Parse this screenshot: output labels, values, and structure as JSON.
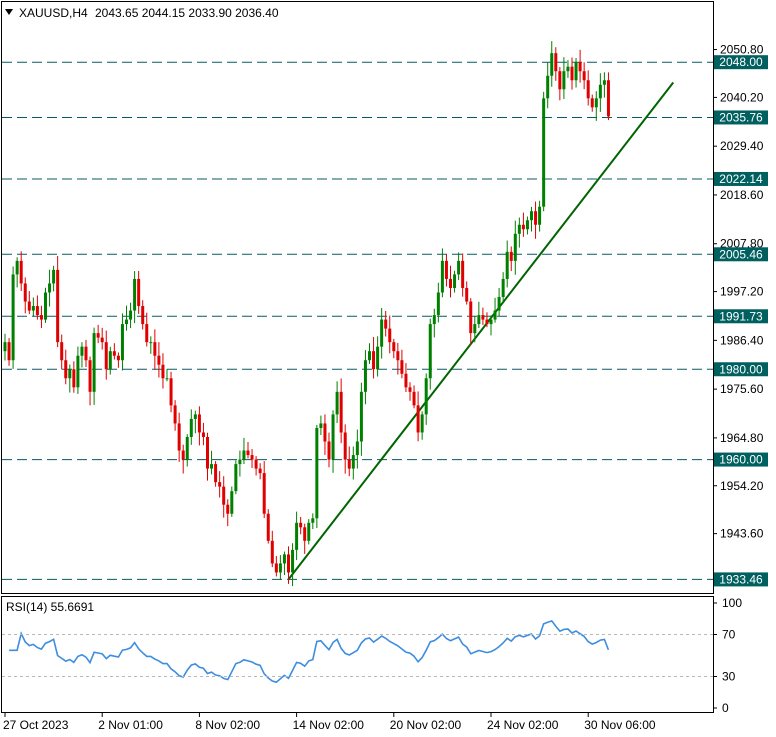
{
  "header": {
    "symbol": "XAUUSD,H4",
    "ohlc": "2043.65 2044.15 2033.90 2036.40"
  },
  "colors": {
    "bull": "#008000",
    "bear": "#e00000",
    "levels": "#0a5a66",
    "badge_bg": "#006060",
    "trendline": "#006400",
    "rsi_line": "#3d8de0",
    "grid_frame": "#000000"
  },
  "chart_data": [
    {
      "type": "candlestick",
      "y_tick_labels": [
        "2050.80",
        "2040.20",
        "2029.40",
        "2018.60",
        "2007.80",
        "1997.20",
        "1986.40",
        "1975.60",
        "1964.80",
        "1954.20",
        "1943.60"
      ],
      "y_ticks": [
        2050.8,
        2040.2,
        2029.4,
        2018.6,
        2007.8,
        1997.2,
        1986.4,
        1975.6,
        1964.8,
        1954.2,
        1943.6
      ],
      "ylim": [
        1932.0,
        2060.0
      ],
      "x_tick_labels": [
        "27 Oct 2023",
        "2 Nov 01:00",
        "8 Nov 02:00",
        "14 Nov 02:00",
        "20 Nov 02:00",
        "24 Nov 02:00",
        "30 Nov 06:00"
      ],
      "x_tick_index": [
        0,
        24,
        48,
        72,
        96,
        120,
        144
      ],
      "horizontal_levels": [
        {
          "value": 2048.0,
          "label": "2048.00"
        },
        {
          "value": 2035.76,
          "label": "2035.76"
        },
        {
          "value": 2022.14,
          "label": "2022.14"
        },
        {
          "value": 2005.46,
          "label": "2005.46"
        },
        {
          "value": 1991.73,
          "label": "1991.73"
        },
        {
          "value": 1980.0,
          "label": "1980.00"
        },
        {
          "value": 1960.0,
          "label": "1960.00"
        },
        {
          "value": 1933.46,
          "label": "1933.46"
        }
      ],
      "trendline": {
        "from": {
          "bar": 70,
          "price": 1933.46
        },
        "to": {
          "bar": 165,
          "price": 2043.5
        }
      },
      "close": [
        1986,
        1982,
        2001,
        2004,
        1999,
        1995,
        1993,
        1994,
        1992,
        1991,
        1997,
        1999,
        2002,
        1986,
        1982,
        1978,
        1980,
        1976,
        1983,
        1985,
        1982,
        1975,
        1988,
        1987,
        1986,
        1980,
        1984,
        1983,
        1982,
        1990,
        1991,
        1993,
        2000,
        1994,
        1990,
        1986,
        1986,
        1983,
        1981,
        1978,
        1978,
        1972,
        1968,
        1962,
        1960,
        1965,
        1969,
        1970,
        1966,
        1965,
        1958,
        1959,
        1955,
        1954,
        1950,
        1948,
        1953,
        1959,
        1960,
        1962,
        1961,
        1960,
        1958,
        1957,
        1948,
        1942,
        1937,
        1935,
        1937,
        1939,
        1935,
        1940,
        1946,
        1945,
        1942,
        1946,
        1947,
        1967,
        1968,
        1964,
        1960,
        1970,
        1975,
        1966,
        1960,
        1958,
        1961,
        1964,
        1975,
        1982,
        1984,
        1980,
        1985,
        1991,
        1989,
        1986,
        1984,
        1982,
        1979,
        1976,
        1975,
        1972,
        1966,
        1970,
        1978,
        1990,
        1992,
        1997,
        2004,
        2000,
        1998,
        2001,
        2004,
        1998,
        1995,
        1988,
        1990,
        1992,
        1991,
        1990,
        1991,
        1993,
        1996,
        2000,
        2006,
        2004,
        2010,
        2012,
        2011,
        2013,
        2015,
        2012,
        2016,
        2040,
        2045,
        2050,
        2046,
        2042,
        2046,
        2047,
        2044,
        2048,
        2046,
        2044,
        2040,
        2038,
        2040,
        2043,
        2044,
        2036
      ]
    },
    {
      "type": "line",
      "title": "RSI(14) 55.6691",
      "y_tick_labels": [
        "100",
        "70",
        "30",
        "0"
      ],
      "y_ticks": [
        100,
        70,
        30,
        0
      ],
      "ylim": [
        0,
        100
      ],
      "guide_levels": [
        70,
        30
      ]
    }
  ]
}
